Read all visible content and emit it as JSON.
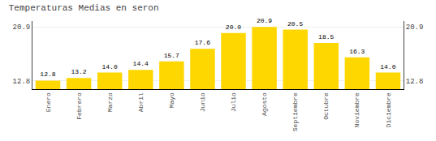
{
  "chart_data": {
    "type": "bar",
    "title": "Temperaturas Medias en seron",
    "categories": [
      "Enero",
      "Febrero",
      "Marzo",
      "Abril",
      "Mayo",
      "Junio",
      "Julio",
      "Agosto",
      "Septiembre",
      "Octubre",
      "Noviembre",
      "Diciembre"
    ],
    "values": [
      12.8,
      13.2,
      14.0,
      14.4,
      15.7,
      17.6,
      20.0,
      20.9,
      20.5,
      18.5,
      16.3,
      14.0
    ],
    "value_labels": [
      "12.8",
      "13.2",
      "14.0",
      "14.4",
      "15.7",
      "17.6",
      "20.0",
      "20.9",
      "20.5",
      "18.5",
      "16.3",
      "14.0"
    ],
    "data_labels": true,
    "color": "#FFD700",
    "ylim": [
      11.5,
      21.8
    ],
    "yticks": [
      12.8,
      20.9
    ],
    "y2lim": [
      11.5,
      21.8
    ],
    "y2ticks": [
      12.8,
      20.9
    ],
    "grid": true
  }
}
